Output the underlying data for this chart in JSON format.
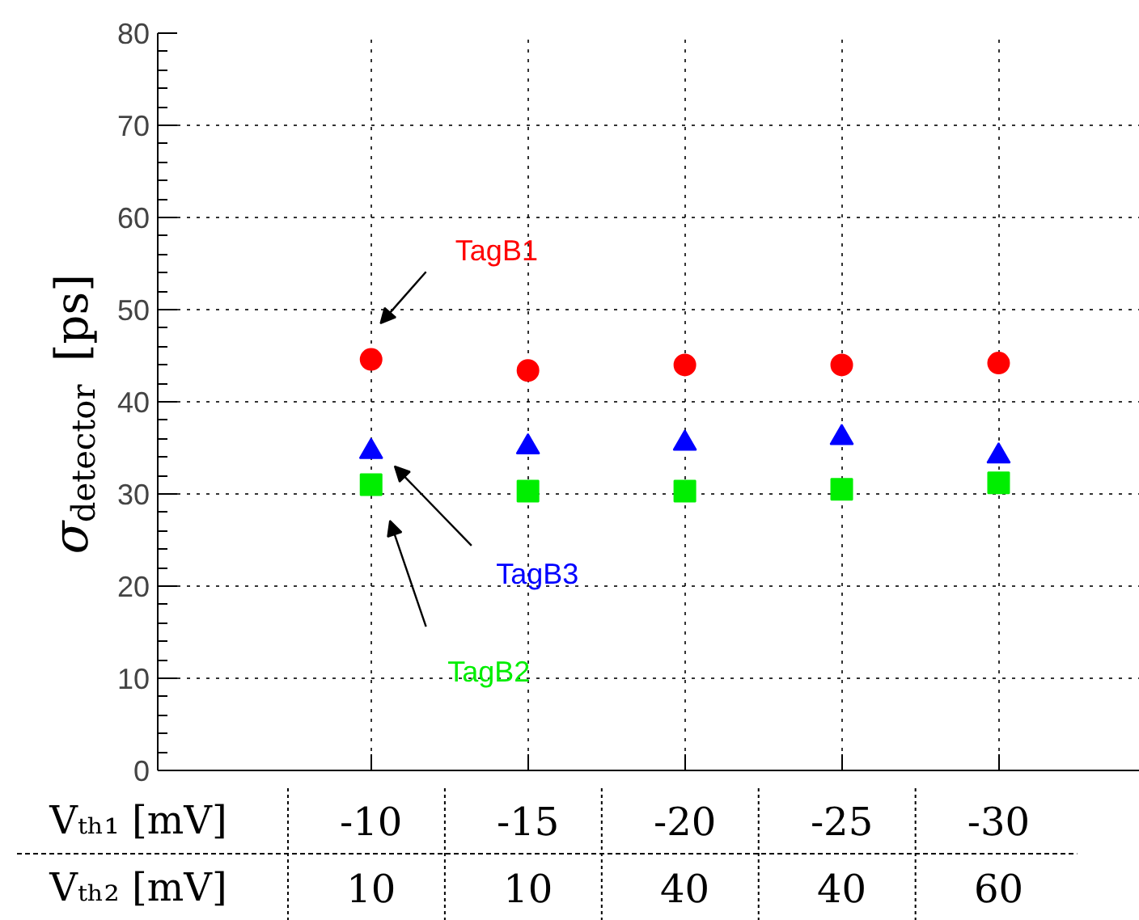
{
  "chart_data": {
    "type": "scatter",
    "xlabel": "Vₜₕ₁ [mV]",
    "ylabel": "σ$_{detector}$ [ps]",
    "categories": [
      "-10",
      "-15",
      "-20",
      "-25",
      "-30"
    ],
    "series": [
      {
        "name": "TagB1",
        "color": "#ff0000",
        "marker": "circle",
        "values": [
          44.6,
          43.4,
          44.0,
          44.0,
          44.2
        ]
      },
      {
        "name": "TagB3",
        "color": "#0000ff",
        "marker": "triangle",
        "values": [
          34.6,
          35.1,
          35.5,
          36.1,
          34.1
        ]
      },
      {
        "name": "TagB2",
        "color": "#00ee00",
        "marker": "square",
        "values": [
          31.0,
          30.3,
          30.3,
          30.5,
          31.2
        ]
      }
    ],
    "annotations": [
      "Vₜₕ₂ [mV]",
      "10",
      "10",
      "40",
      "40",
      "60"
    ],
    "ylim": [
      0,
      80
    ],
    "yticks": [
      0,
      10,
      20,
      30,
      40,
      50,
      60,
      70,
      80
    ],
    "grid": true
  }
}
